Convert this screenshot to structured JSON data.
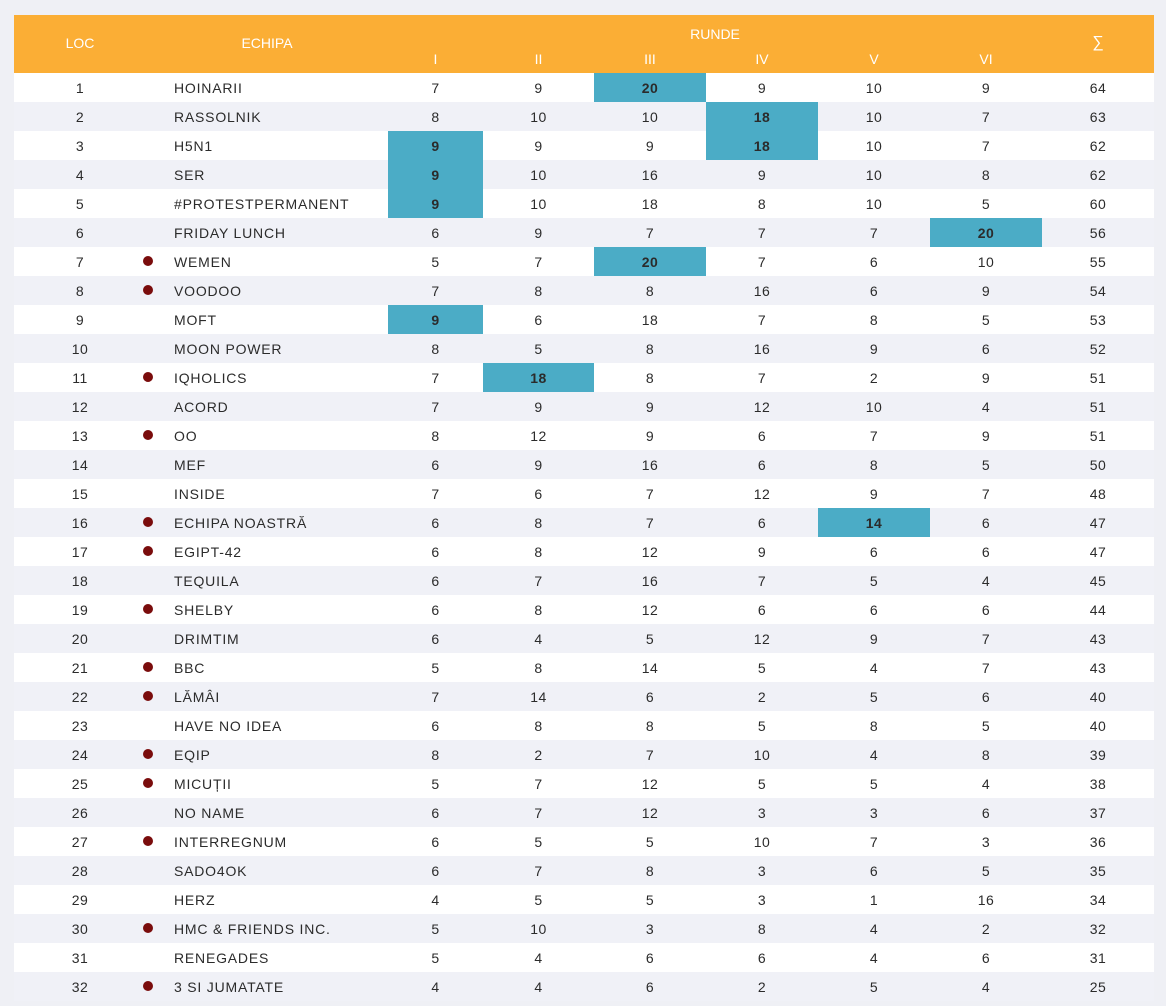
{
  "header": {
    "loc": "LOC",
    "team": "ECHIPA",
    "rounds": "RUNDE",
    "round_labels": [
      "I",
      "II",
      "III",
      "IV",
      "V",
      "VI"
    ],
    "sum": "∑"
  },
  "colors": {
    "header_bg": "#fbae35",
    "highlight": "#4bacc6",
    "marker": "#7a0c0c"
  },
  "rows": [
    {
      "loc": "1",
      "team": "HOINARII",
      "marked": false,
      "scores": [
        "7",
        "9",
        "20",
        "9",
        "10",
        "9"
      ],
      "hl": [
        2
      ],
      "sum": "64"
    },
    {
      "loc": "2",
      "team": "RASSOLNIK",
      "marked": false,
      "scores": [
        "8",
        "10",
        "10",
        "18",
        "10",
        "7"
      ],
      "hl": [
        3
      ],
      "sum": "63"
    },
    {
      "loc": "3",
      "team": "H5N1",
      "marked": false,
      "scores": [
        "9",
        "9",
        "9",
        "18",
        "10",
        "7"
      ],
      "hl": [
        0,
        3
      ],
      "sum": "62"
    },
    {
      "loc": "4",
      "team": "SER",
      "marked": false,
      "scores": [
        "9",
        "10",
        "16",
        "9",
        "10",
        "8"
      ],
      "hl": [
        0
      ],
      "sum": "62"
    },
    {
      "loc": "5",
      "team": "#PROTESTPERMANENT",
      "marked": false,
      "scores": [
        "9",
        "10",
        "18",
        "8",
        "10",
        "5"
      ],
      "hl": [
        0
      ],
      "sum": "60"
    },
    {
      "loc": "6",
      "team": "FRIDAY LUNCH",
      "marked": false,
      "scores": [
        "6",
        "9",
        "7",
        "7",
        "7",
        "20"
      ],
      "hl": [
        5
      ],
      "sum": "56"
    },
    {
      "loc": "7",
      "team": "WEMEN",
      "marked": true,
      "scores": [
        "5",
        "7",
        "20",
        "7",
        "6",
        "10"
      ],
      "hl": [
        2
      ],
      "sum": "55"
    },
    {
      "loc": "8",
      "team": "VOODOO",
      "marked": true,
      "scores": [
        "7",
        "8",
        "8",
        "16",
        "6",
        "9"
      ],
      "hl": [],
      "sum": "54"
    },
    {
      "loc": "9",
      "team": "MOFT",
      "marked": false,
      "scores": [
        "9",
        "6",
        "18",
        "7",
        "8",
        "5"
      ],
      "hl": [
        0
      ],
      "sum": "53"
    },
    {
      "loc": "10",
      "team": "MOON POWER",
      "marked": false,
      "scores": [
        "8",
        "5",
        "8",
        "16",
        "9",
        "6"
      ],
      "hl": [],
      "sum": "52"
    },
    {
      "loc": "11",
      "team": "IQHOLICS",
      "marked": true,
      "scores": [
        "7",
        "18",
        "8",
        "7",
        "2",
        "9"
      ],
      "hl": [
        1
      ],
      "sum": "51"
    },
    {
      "loc": "12",
      "team": "ACORD",
      "marked": false,
      "scores": [
        "7",
        "9",
        "9",
        "12",
        "10",
        "4"
      ],
      "hl": [],
      "sum": "51"
    },
    {
      "loc": "13",
      "team": "OO",
      "marked": true,
      "scores": [
        "8",
        "12",
        "9",
        "6",
        "7",
        "9"
      ],
      "hl": [],
      "sum": "51"
    },
    {
      "loc": "14",
      "team": "MEF",
      "marked": false,
      "scores": [
        "6",
        "9",
        "16",
        "6",
        "8",
        "5"
      ],
      "hl": [],
      "sum": "50"
    },
    {
      "loc": "15",
      "team": "INSIDE",
      "marked": false,
      "scores": [
        "7",
        "6",
        "7",
        "12",
        "9",
        "7"
      ],
      "hl": [],
      "sum": "48"
    },
    {
      "loc": "16",
      "team": "ECHIPA NOASTRĂ",
      "marked": true,
      "scores": [
        "6",
        "8",
        "7",
        "6",
        "14",
        "6"
      ],
      "hl": [
        4
      ],
      "sum": "47"
    },
    {
      "loc": "17",
      "team": "EGIPT-42",
      "marked": true,
      "scores": [
        "6",
        "8",
        "12",
        "9",
        "6",
        "6"
      ],
      "hl": [],
      "sum": "47"
    },
    {
      "loc": "18",
      "team": "TEQUILA",
      "marked": false,
      "scores": [
        "6",
        "7",
        "16",
        "7",
        "5",
        "4"
      ],
      "hl": [],
      "sum": "45"
    },
    {
      "loc": "19",
      "team": "SHELBY",
      "marked": true,
      "scores": [
        "6",
        "8",
        "12",
        "6",
        "6",
        "6"
      ],
      "hl": [],
      "sum": "44"
    },
    {
      "loc": "20",
      "team": "DRIMTIM",
      "marked": false,
      "scores": [
        "6",
        "4",
        "5",
        "12",
        "9",
        "7"
      ],
      "hl": [],
      "sum": "43"
    },
    {
      "loc": "21",
      "team": "BBC",
      "marked": true,
      "scores": [
        "5",
        "8",
        "14",
        "5",
        "4",
        "7"
      ],
      "hl": [],
      "sum": "43"
    },
    {
      "loc": "22",
      "team": "LĂMÂI",
      "marked": true,
      "scores": [
        "7",
        "14",
        "6",
        "2",
        "5",
        "6"
      ],
      "hl": [],
      "sum": "40"
    },
    {
      "loc": "23",
      "team": "HAVE NO IDEA",
      "marked": false,
      "scores": [
        "6",
        "8",
        "8",
        "5",
        "8",
        "5"
      ],
      "hl": [],
      "sum": "40"
    },
    {
      "loc": "24",
      "team": "EQIP",
      "marked": true,
      "scores": [
        "8",
        "2",
        "7",
        "10",
        "4",
        "8"
      ],
      "hl": [],
      "sum": "39"
    },
    {
      "loc": "25",
      "team": "MICUȚII",
      "marked": true,
      "scores": [
        "5",
        "7",
        "12",
        "5",
        "5",
        "4"
      ],
      "hl": [],
      "sum": "38"
    },
    {
      "loc": "26",
      "team": "NO NAME",
      "marked": false,
      "scores": [
        "6",
        "7",
        "12",
        "3",
        "3",
        "6"
      ],
      "hl": [],
      "sum": "37"
    },
    {
      "loc": "27",
      "team": "INTERREGNUM",
      "marked": true,
      "scores": [
        "6",
        "5",
        "5",
        "10",
        "7",
        "3"
      ],
      "hl": [],
      "sum": "36"
    },
    {
      "loc": "28",
      "team": "SADO4OK",
      "marked": false,
      "scores": [
        "6",
        "7",
        "8",
        "3",
        "6",
        "5"
      ],
      "hl": [],
      "sum": "35"
    },
    {
      "loc": "29",
      "team": "HERZ",
      "marked": false,
      "scores": [
        "4",
        "5",
        "5",
        "3",
        "1",
        "16"
      ],
      "hl": [],
      "sum": "34"
    },
    {
      "loc": "30",
      "team": "HMC & FRIENDS INC.",
      "marked": true,
      "scores": [
        "5",
        "10",
        "3",
        "8",
        "4",
        "2"
      ],
      "hl": [],
      "sum": "32"
    },
    {
      "loc": "31",
      "team": "RENEGADES",
      "marked": false,
      "scores": [
        "5",
        "4",
        "6",
        "6",
        "4",
        "6"
      ],
      "hl": [],
      "sum": "31"
    },
    {
      "loc": "32",
      "team": "3 SI JUMATATE",
      "marked": true,
      "scores": [
        "4",
        "4",
        "6",
        "2",
        "5",
        "4"
      ],
      "hl": [],
      "sum": "25"
    }
  ]
}
